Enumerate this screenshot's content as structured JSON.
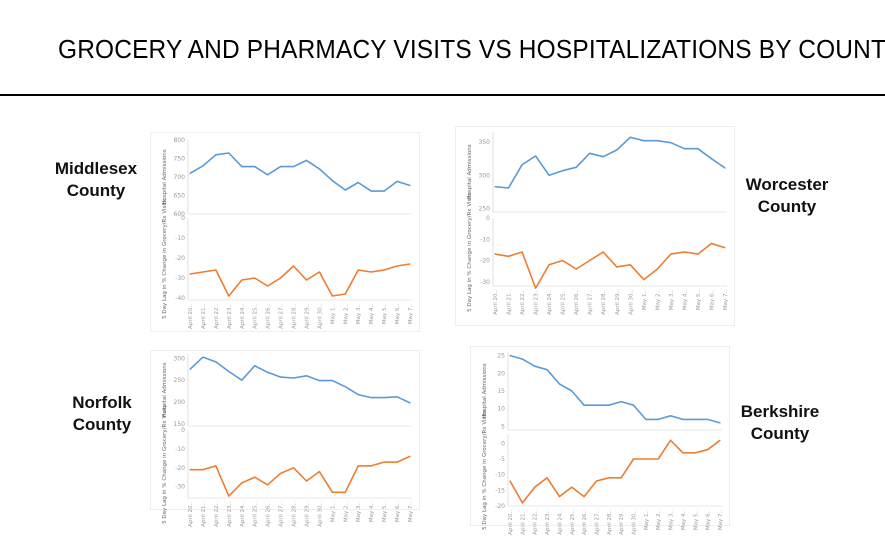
{
  "title": "GROCERY AND PHARMACY VISITS VS HOSPITALIZATIONS BY COUNTY",
  "colors": {
    "hospital": "#5b9bd5",
    "visits": "#ed7d31"
  },
  "x_labels": [
    "April 20..",
    "April 21..",
    "April 22..",
    "April 23..",
    "April 24..",
    "April 25..",
    "April 26..",
    "April 27..",
    "April 28..",
    "April 29..",
    "April 30..",
    "May 1..",
    "May 2..",
    "May 3..",
    "May 4..",
    "May 5..",
    "May 6..",
    "May 7.."
  ],
  "chart_data": [
    {
      "type": "line",
      "county": [
        "Middlesex",
        "County"
      ],
      "x": [
        "April 20..",
        "April 21..",
        "April 22..",
        "April 23..",
        "April 24..",
        "April 25..",
        "April 26..",
        "April 27..",
        "April 28..",
        "April 29..",
        "April 30..",
        "May 1..",
        "May 2..",
        "May 3..",
        "May 4..",
        "May 5..",
        "May 6..",
        "May 7.."
      ],
      "top": {
        "ylabel": "Hospital Admissions",
        "ticks": [
          600,
          650,
          700,
          750,
          800
        ],
        "ylim": [
          600,
          800
        ],
        "values": [
          710,
          730,
          760,
          765,
          728,
          728,
          706,
          728,
          728,
          745,
          722,
          690,
          665,
          685,
          662,
          662,
          688,
          677
        ]
      },
      "bottom": {
        "ylabel": "5 Day Lag in % Change in Grocery/Rx Visits",
        "ticks": [
          0,
          -10,
          -20,
          -30,
          -40
        ],
        "ylim": [
          -41,
          0
        ],
        "values": [
          -28,
          -27,
          -26,
          -39,
          -31,
          -30,
          -34,
          -30,
          -24,
          -31,
          -27,
          -39,
          -38,
          -26,
          -27,
          -26,
          -24,
          -23
        ]
      }
    },
    {
      "type": "line",
      "county": [
        "Worcester",
        "County"
      ],
      "x": [
        "April 20..",
        "April 21..",
        "April 22..",
        "April 23..",
        "April 24..",
        "April 25..",
        "April 26..",
        "April 27..",
        "April 28..",
        "April 29..",
        "April 30..",
        "May 1..",
        "May 2..",
        "May 3..",
        "May 4..",
        "May 5..",
        "May 6..",
        "May 7.."
      ],
      "top": {
        "ylabel": "Hospital Admissions",
        "ticks": [
          250,
          300,
          350
        ],
        "ylim": [
          245,
          365
        ],
        "values": [
          283,
          281,
          316,
          329,
          300,
          307,
          312,
          333,
          328,
          338,
          357,
          352,
          352,
          349,
          340,
          340,
          325,
          311
        ]
      },
      "bottom": {
        "ylabel": "5 Day Lag in % Change in Grocery/Rx Visits",
        "ticks": [
          0,
          -10,
          -20,
          -30
        ],
        "ylim": [
          -32,
          0
        ],
        "values": [
          -17,
          -18,
          -16,
          -33,
          -22,
          -20,
          -24,
          -20,
          -16,
          -23,
          -22,
          -29,
          -24,
          -17,
          -16,
          -17,
          -12,
          -14
        ]
      }
    },
    {
      "type": "line",
      "county": [
        "Norfolk",
        "County"
      ],
      "x": [
        "April 20..",
        "April 21..",
        "April 22..",
        "April 23..",
        "April 24..",
        "April 25..",
        "April 26..",
        "April 27..",
        "April 28..",
        "April 29..",
        "April 30..",
        "May 1..",
        "May 2..",
        "May 3..",
        "May 4..",
        "May 5..",
        "May 6..",
        "May 7.."
      ],
      "top": {
        "ylabel": "Hospital Admissions",
        "ticks": [
          150,
          200,
          250,
          300
        ],
        "ylim": [
          145,
          310
        ],
        "values": [
          275,
          303,
          292,
          270,
          250,
          283,
          268,
          257,
          255,
          260,
          249,
          249,
          235,
          217,
          210,
          210,
          212,
          198
        ]
      },
      "bottom": {
        "ylabel": "5 Day Lag in % Change in Grocery/Rx Visits",
        "ticks": [
          0,
          -10,
          -20,
          -30
        ],
        "ylim": [
          -36,
          0
        ],
        "values": [
          -21,
          -21,
          -19,
          -35,
          -28,
          -25,
          -29,
          -23,
          -20,
          -27,
          -22,
          -33,
          -33,
          -19,
          -19,
          -17,
          -17,
          -14
        ]
      }
    },
    {
      "type": "line",
      "county": [
        "Berkshire",
        "County"
      ],
      "x": [
        "April 20..",
        "April 21..",
        "April 22..",
        "April 23..",
        "April 24..",
        "April 25..",
        "April 26..",
        "April 27..",
        "April 28..",
        "April 29..",
        "April 30..",
        "May 1..",
        "May 2..",
        "May 3..",
        "May 4..",
        "May 5..",
        "May 6..",
        "May 7.."
      ],
      "top": {
        "ylabel": "Hospital Admissions",
        "ticks": [
          5,
          10,
          15,
          20,
          25
        ],
        "ylim": [
          4,
          26
        ],
        "values": [
          25,
          24,
          22,
          21,
          17,
          15,
          11,
          11,
          11,
          12,
          11,
          7,
          7,
          8,
          7,
          7,
          7,
          6
        ]
      },
      "bottom": {
        "ylabel": "5 Day Lag in % Change in Grocery/Rx Visits",
        "ticks": [
          0,
          -5,
          -10,
          -15,
          -20
        ],
        "ylim": [
          -20,
          3
        ],
        "values": [
          -12,
          -19,
          -14,
          -11,
          -17,
          -14,
          -17,
          -12,
          -11,
          -11,
          -5,
          -5,
          -5,
          1,
          -3,
          -3,
          -2,
          1
        ]
      }
    }
  ]
}
